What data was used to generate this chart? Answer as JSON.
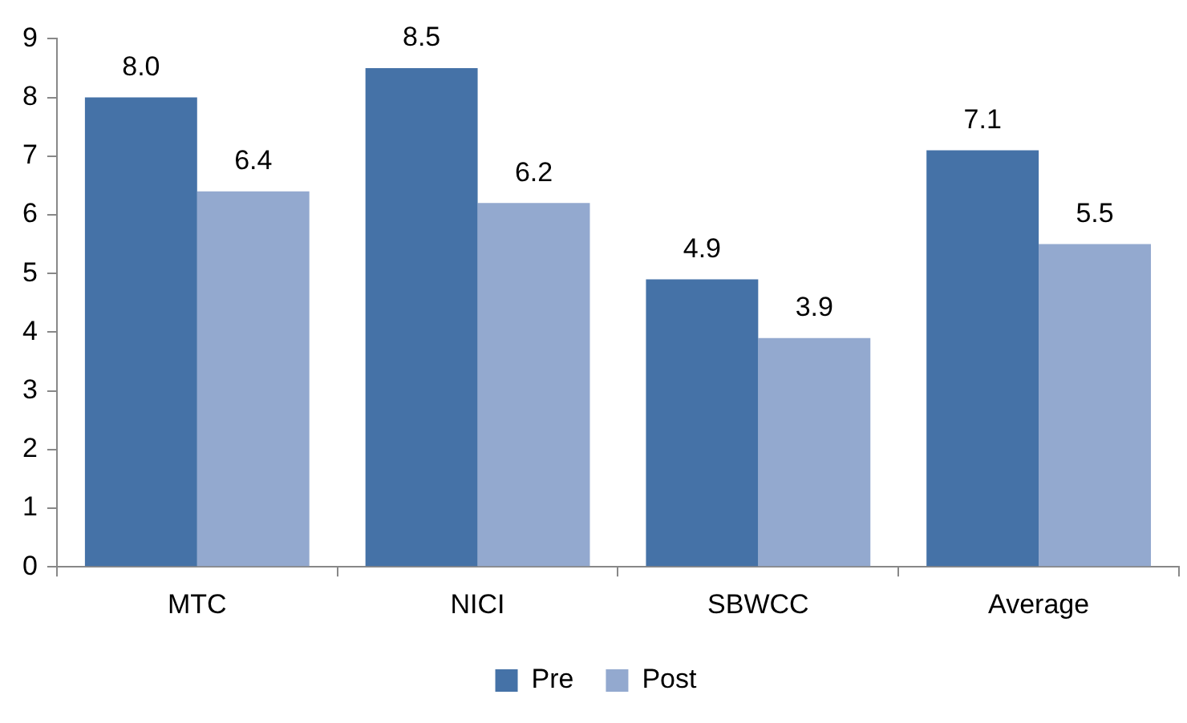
{
  "chart_data": {
    "type": "bar",
    "categories": [
      "MTC",
      "NICI",
      "SBWCC",
      "Average"
    ],
    "series": [
      {
        "name": "Pre",
        "color": "#4572a7",
        "values": [
          8.0,
          8.5,
          4.9,
          7.1
        ],
        "value_labels": [
          "8.0",
          "8.5",
          "4.9",
          "7.1"
        ]
      },
      {
        "name": "Post",
        "color": "#93a9cf",
        "values": [
          6.4,
          6.2,
          3.9,
          5.5
        ],
        "value_labels": [
          "6.4",
          "6.2",
          "3.9",
          "5.5"
        ]
      }
    ],
    "ylim": [
      0,
      9
    ],
    "yticks": [
      0,
      1,
      2,
      3,
      4,
      5,
      6,
      7,
      8,
      9
    ],
    "grid": false,
    "legend": "bottom"
  }
}
